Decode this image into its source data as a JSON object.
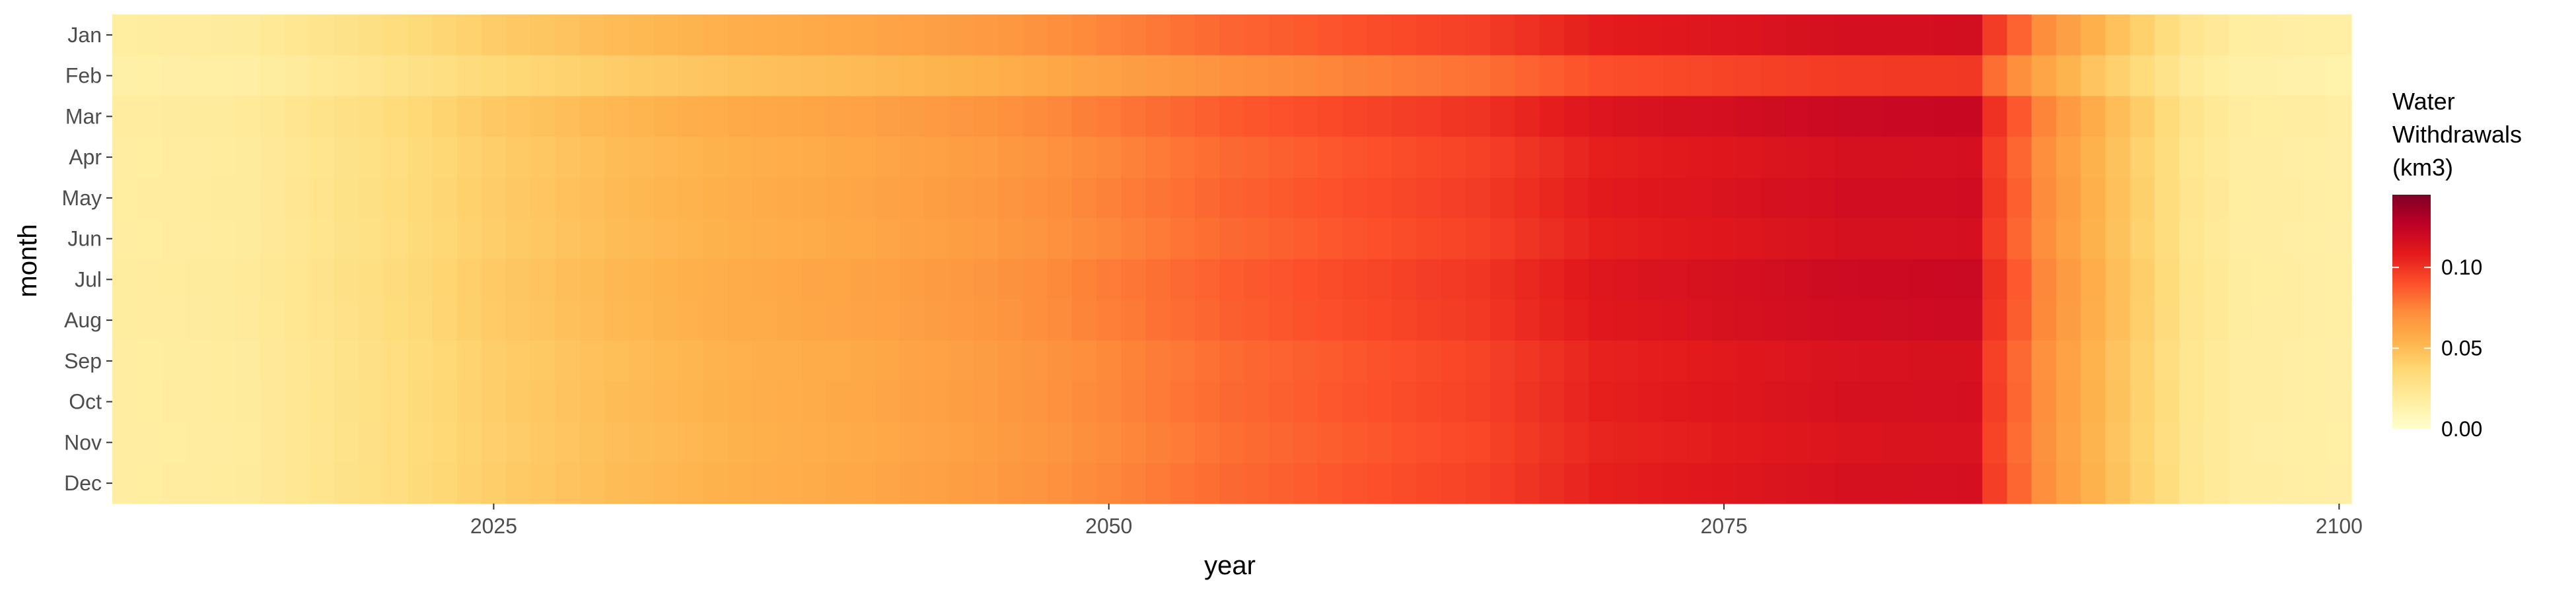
{
  "chart_data": {
    "type": "heatmap",
    "xlabel": "year",
    "ylabel": "month",
    "x_start": 2010,
    "x_end": 2100,
    "xlim": [
      2010,
      2100
    ],
    "x_ticks": [
      2025,
      2050,
      2075,
      2100
    ],
    "y_categories": [
      "Jan",
      "Feb",
      "Mar",
      "Apr",
      "May",
      "Jun",
      "Jul",
      "Aug",
      "Sep",
      "Oct",
      "Nov",
      "Dec"
    ],
    "legend_title_lines": [
      "Water",
      "Withdrawals",
      "(km3)"
    ],
    "legend_ticks": [
      "0.00",
      "0.05",
      "0.10"
    ],
    "color_scale": {
      "min": 0.0,
      "max": 0.145,
      "stops": [
        "#ffffcc",
        "#ffeda0",
        "#fed976",
        "#feb24c",
        "#fd8d3c",
        "#fc4e2a",
        "#e31a1c",
        "#bd0026",
        "#800026"
      ]
    },
    "annual_profile": [
      [
        2010,
        0.018
      ],
      [
        2015,
        0.02
      ],
      [
        2020,
        0.03
      ],
      [
        2025,
        0.042
      ],
      [
        2030,
        0.05
      ],
      [
        2035,
        0.056
      ],
      [
        2040,
        0.06
      ],
      [
        2045,
        0.066
      ],
      [
        2050,
        0.075
      ],
      [
        2055,
        0.084
      ],
      [
        2060,
        0.09
      ],
      [
        2065,
        0.096
      ],
      [
        2070,
        0.108
      ],
      [
        2075,
        0.112
      ],
      [
        2080,
        0.116
      ],
      [
        2085,
        0.117
      ],
      [
        2086,
        0.097
      ],
      [
        2088,
        0.072
      ],
      [
        2090,
        0.055
      ],
      [
        2092,
        0.04
      ],
      [
        2094,
        0.025
      ],
      [
        2096,
        0.018
      ],
      [
        2100,
        0.016
      ]
    ],
    "month_factors": [
      1.0,
      0.84,
      1.04,
      0.99,
      1.01,
      0.99,
      1.03,
      1.02,
      0.98,
      0.99,
      0.97,
      0.99
    ]
  }
}
